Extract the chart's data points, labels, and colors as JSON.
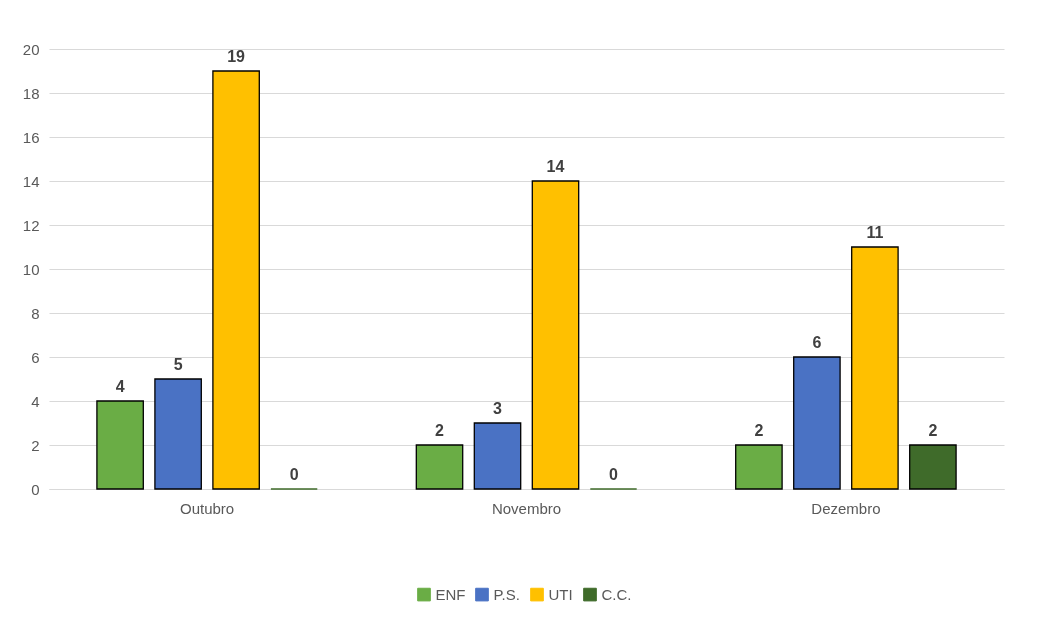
{
  "chart_data": {
    "type": "bar",
    "categories": [
      "Outubro",
      "Novembro",
      "Dezembro"
    ],
    "series": [
      {
        "name": "ENF",
        "color": "#6aad45",
        "values": [
          4,
          2,
          2
        ]
      },
      {
        "name": "P.S.",
        "color": "#4a72c4",
        "values": [
          5,
          3,
          6
        ]
      },
      {
        "name": "UTI",
        "color": "#ffc000",
        "values": [
          19,
          14,
          11
        ]
      },
      {
        "name": "C.C.",
        "color": "#3f6b2a",
        "values": [
          0,
          0,
          2
        ]
      }
    ],
    "ylim": [
      0,
      20
    ],
    "yticks": [
      0,
      2,
      4,
      6,
      8,
      10,
      12,
      14,
      16,
      18,
      20
    ],
    "grid": "y",
    "legend": "bottom",
    "data_labels": true
  }
}
